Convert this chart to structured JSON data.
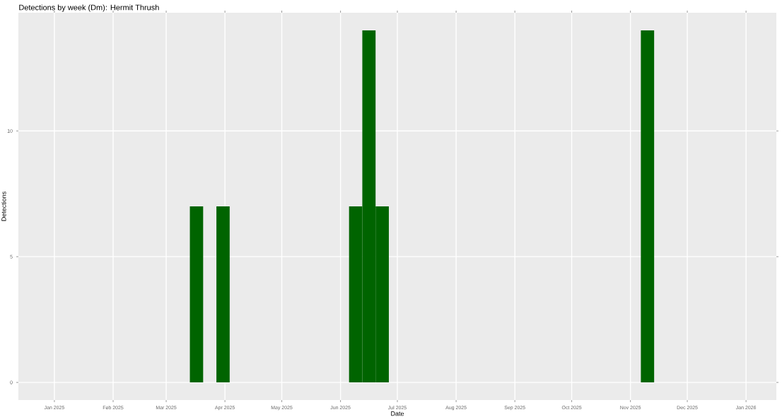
{
  "chart_data": {
    "type": "bar",
    "title": "Detections by week (Dm): Hermit Thrush",
    "xlabel": "Date",
    "ylabel": "Detections",
    "x": [
      "2025-03-17",
      "2025-03-31",
      "2025-06-09",
      "2025-06-16",
      "2025-06-23",
      "2025-11-10"
    ],
    "values": [
      7,
      7,
      7,
      14,
      7,
      14
    ],
    "color": "#006400",
    "xlim": [
      "2024-12-13",
      "2026-01-17"
    ],
    "xticks": [
      {
        "value": "2025-01-01",
        "label": "Jan 2025"
      },
      {
        "value": "2025-02-01",
        "label": "Feb 2025"
      },
      {
        "value": "2025-03-01",
        "label": "Mar 2025"
      },
      {
        "value": "2025-04-01",
        "label": "Apr 2025"
      },
      {
        "value": "2025-05-01",
        "label": "May 2025"
      },
      {
        "value": "2025-06-01",
        "label": "Jun 2025"
      },
      {
        "value": "2025-07-01",
        "label": "Jul 2025"
      },
      {
        "value": "2025-08-01",
        "label": "Aug 2025"
      },
      {
        "value": "2025-09-01",
        "label": "Sep 2025"
      },
      {
        "value": "2025-10-01",
        "label": "Oct 2025"
      },
      {
        "value": "2025-11-01",
        "label": "Nov 2025"
      },
      {
        "value": "2025-12-01",
        "label": "Dec 2025"
      },
      {
        "value": "2026-01-01",
        "label": "Jan 2026"
      }
    ],
    "ylim": [
      -0.7,
      14.7
    ],
    "yticks": [
      0,
      5,
      10
    ],
    "grid": true
  }
}
